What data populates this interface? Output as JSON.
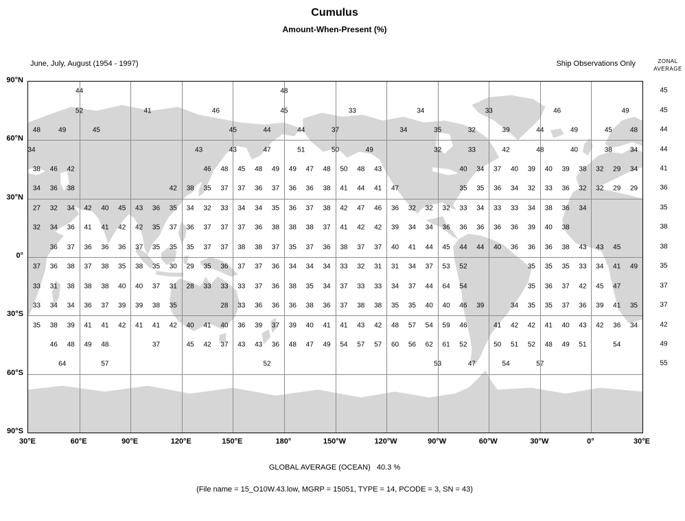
{
  "header": {
    "title": "Cumulus",
    "subtitle": "Amount-When-Present (%)",
    "period": "June, July, August (1954 - 1997)",
    "source_note": "Ship Observations Only",
    "zonal_label_line1": "ZONAL",
    "zonal_label_line2": "AVERAGE"
  },
  "footer": {
    "global_average": "GLOBAL AVERAGE (OCEAN)   40.3 %",
    "file_info": "(File name = 15_O10W.43.low, MGRP = 15051, TYPE = 14, PCODE = 3, SN = 43)"
  },
  "colors": {
    "land": "#d6d6d6",
    "grid": "#8c8c8c",
    "text": "#000000"
  },
  "chart_data": {
    "type": "heatmap",
    "title": "Cumulus Amount-When-Present (%)",
    "subtitle": "June, July, August (1954 - 1997), Ship Observations Only",
    "projection": "equirectangular world map, left edge at 30°E, longitude offset p in degrees eastward 0-360",
    "global_average_ocean_pct": 40.3,
    "lat_labels": [
      {
        "text": "90°N",
        "lat": 90
      },
      {
        "text": "60°N",
        "lat": 60
      },
      {
        "text": "30°N",
        "lat": 30
      },
      {
        "text": "0°",
        "lat": 0
      },
      {
        "text": "30°S",
        "lat": -30
      },
      {
        "text": "60°S",
        "lat": -60
      },
      {
        "text": "90°S",
        "lat": -90
      }
    ],
    "lon_labels": [
      {
        "text": "30°E",
        "p": 0
      },
      {
        "text": "60°E",
        "p": 30
      },
      {
        "text": "90°E",
        "p": 60
      },
      {
        "text": "120°E",
        "p": 90
      },
      {
        "text": "150°E",
        "p": 120
      },
      {
        "text": "180°",
        "p": 150
      },
      {
        "text": "150°W",
        "p": 180
      },
      {
        "text": "120°W",
        "p": 210
      },
      {
        "text": "90°W",
        "p": 240
      },
      {
        "text": "60°W",
        "p": 270
      },
      {
        "text": "30°W",
        "p": 300
      },
      {
        "text": "0°",
        "p": 330
      },
      {
        "text": "30°E",
        "p": 360
      }
    ],
    "rows": [
      {
        "lat": 85,
        "zonal": 45,
        "segments": [
          {
            "start": 30,
            "step": 120,
            "values": [
              44,
              48
            ]
          }
        ]
      },
      {
        "lat": 75,
        "zonal": 45,
        "segments": [
          {
            "start": 30,
            "step": 40,
            "values": [
              52,
              41,
              46,
              45,
              33,
              34,
              33,
              46,
              49
            ]
          }
        ]
      },
      {
        "lat": 65,
        "zonal": 44,
        "segments": [
          {
            "start": 5,
            "step": 15,
            "values": [
              48,
              49
            ]
          },
          {
            "start": 40,
            "step": 10,
            "values": [
              45
            ]
          },
          {
            "start": 120,
            "step": 20,
            "values": [
              45,
              44,
              44,
              37
            ]
          },
          {
            "start": 220,
            "step": 20,
            "values": [
              34,
              35,
              32,
              39,
              44,
              49,
              45
            ]
          },
          {
            "start": 355,
            "step": 10,
            "values": [
              48
            ]
          }
        ]
      },
      {
        "lat": 55,
        "zonal": 44,
        "segments": [
          {
            "start": 2,
            "step": 10,
            "values": [
              34
            ]
          },
          {
            "start": 100,
            "step": 20,
            "values": [
              43,
              43,
              47,
              51,
              50,
              49
            ]
          },
          {
            "start": 240,
            "step": 20,
            "values": [
              32,
              33,
              42,
              48,
              40,
              38
            ]
          },
          {
            "start": 355,
            "step": 10,
            "values": [
              34
            ]
          }
        ]
      },
      {
        "lat": 45,
        "zonal": 41,
        "segments": [
          {
            "start": 5,
            "step": 10,
            "values": [
              38,
              46,
              42
            ]
          },
          {
            "start": 105,
            "step": 10,
            "values": [
              46,
              48,
              45,
              48,
              49,
              49,
              47,
              48,
              50,
              48,
              43
            ]
          },
          {
            "start": 255,
            "step": 10,
            "values": [
              40,
              34,
              37,
              40,
              39,
              40,
              39,
              38,
              32,
              29,
              34
            ]
          }
        ]
      },
      {
        "lat": 35,
        "zonal": 36,
        "segments": [
          {
            "start": 5,
            "step": 10,
            "values": [
              34,
              36,
              38
            ]
          },
          {
            "start": 85,
            "step": 10,
            "values": [
              42,
              38,
              35,
              37,
              37,
              36,
              37,
              36,
              36,
              38,
              41,
              44,
              41,
              47
            ]
          },
          {
            "start": 255,
            "step": 10,
            "values": [
              35,
              35,
              36,
              34,
              32,
              33,
              36,
              32,
              32,
              29,
              29
            ]
          }
        ]
      },
      {
        "lat": 25,
        "zonal": 35,
        "segments": [
          {
            "start": 5,
            "step": 10,
            "values": [
              27,
              32,
              34,
              42,
              40,
              45,
              43,
              36,
              35,
              34,
              32,
              33,
              34,
              34,
              35,
              36,
              37,
              38,
              42,
              47,
              46,
              36,
              32,
              32,
              32,
              33,
              34,
              33,
              33,
              34,
              38,
              36,
              34
            ]
          }
        ]
      },
      {
        "lat": 15,
        "zonal": 38,
        "segments": [
          {
            "start": 5,
            "step": 10,
            "values": [
              32,
              34,
              36,
              41,
              41,
              42,
              42,
              35,
              37,
              36,
              37,
              37,
              37,
              36,
              38,
              38,
              38,
              37,
              41,
              42,
              42,
              39,
              34,
              34,
              36,
              36,
              36,
              36,
              36,
              39,
              40,
              38
            ]
          }
        ]
      },
      {
        "lat": 5,
        "zonal": 38,
        "segments": [
          {
            "start": 15,
            "step": 10,
            "values": [
              36,
              37,
              36,
              36,
              36,
              37,
              35,
              35,
              35,
              37,
              37,
              38,
              38,
              37,
              35,
              37,
              36,
              38,
              37,
              37,
              40,
              41,
              44,
              45,
              44,
              44,
              40,
              36,
              36,
              36,
              38,
              43,
              43,
              45
            ]
          }
        ]
      },
      {
        "lat": -5,
        "zonal": 35,
        "segments": [
          {
            "start": 5,
            "step": 10,
            "values": [
              37,
              36,
              38,
              37,
              38,
              35,
              38,
              35,
              30,
              29,
              35,
              36,
              37,
              37,
              36,
              34,
              34,
              34,
              33,
              32,
              31,
              31,
              34,
              37,
              53,
              52
            ]
          },
          {
            "start": 295,
            "step": 10,
            "values": [
              35,
              35,
              35,
              33,
              34,
              41,
              49
            ]
          }
        ]
      },
      {
        "lat": -15,
        "zonal": 37,
        "segments": [
          {
            "start": 5,
            "step": 10,
            "values": [
              33,
              31,
              38,
              38,
              38,
              40,
              40,
              37,
              31,
              28,
              33,
              33,
              33,
              37,
              36,
              38,
              35,
              34,
              37,
              33,
              33,
              34,
              37,
              44,
              64,
              54
            ]
          },
          {
            "start": 295,
            "step": 10,
            "values": [
              35,
              36,
              37,
              42,
              45,
              47
            ]
          }
        ]
      },
      {
        "lat": -25,
        "zonal": 37,
        "segments": [
          {
            "start": 5,
            "step": 10,
            "values": [
              33,
              34,
              34,
              36,
              37,
              39,
              39,
              38,
              35
            ]
          },
          {
            "start": 115,
            "step": 10,
            "values": [
              28,
              33,
              36,
              36,
              36,
              38,
              36,
              37,
              38,
              38,
              35,
              35,
              40,
              40,
              46,
              39
            ]
          },
          {
            "start": 285,
            "step": 10,
            "values": [
              34,
              35,
              35,
              37,
              36,
              39,
              41,
              35
            ]
          }
        ]
      },
      {
        "lat": -35,
        "zonal": 42,
        "segments": [
          {
            "start": 5,
            "step": 10,
            "values": [
              35,
              38,
              39,
              41,
              41,
              42,
              41,
              41,
              42,
              40,
              41,
              40,
              36,
              39,
              37,
              39,
              40,
              41,
              41,
              43,
              42,
              48,
              57,
              54,
              59,
              46
            ]
          },
          {
            "start": 275,
            "step": 10,
            "values": [
              41,
              42,
              42,
              41,
              40,
              43,
              42,
              36,
              34
            ]
          }
        ]
      },
      {
        "lat": -45,
        "zonal": 49,
        "segments": [
          {
            "start": 15,
            "step": 10,
            "values": [
              46,
              48,
              49,
              48
            ]
          },
          {
            "start": 75,
            "step": 10,
            "values": [
              37
            ]
          },
          {
            "start": 95,
            "step": 10,
            "values": [
              45,
              42,
              37,
              43,
              43,
              36,
              48,
              47,
              49,
              54,
              57,
              57,
              60,
              56,
              62,
              61,
              52
            ]
          },
          {
            "start": 275,
            "step": 10,
            "values": [
              50,
              51,
              52,
              48,
              49,
              51
            ]
          },
          {
            "start": 345,
            "step": 10,
            "values": [
              54
            ]
          }
        ]
      },
      {
        "lat": -55,
        "zonal": 55,
        "segments": [
          {
            "start": 20,
            "step": 10,
            "values": [
              64
            ]
          },
          {
            "start": 45,
            "step": 10,
            "values": [
              57
            ]
          },
          {
            "start": 140,
            "step": 10,
            "values": [
              52
            ]
          },
          {
            "start": 240,
            "step": 20,
            "values": [
              53,
              47,
              54,
              57
            ]
          }
        ]
      }
    ]
  }
}
